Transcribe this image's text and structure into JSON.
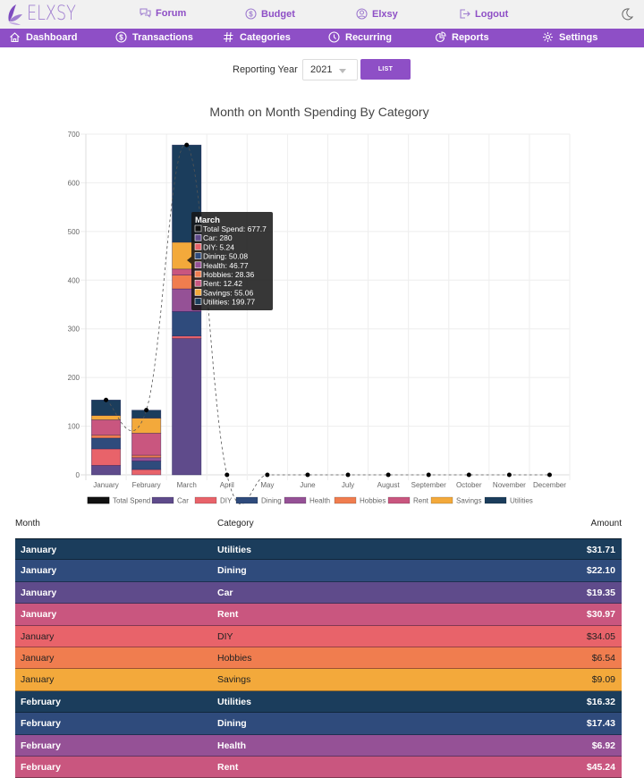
{
  "app": {
    "logo_text": "ELXSY"
  },
  "topnav": [
    {
      "label": "Forum",
      "icon": "chat-icon"
    },
    {
      "label": "Budget",
      "icon": "dollar-circle-icon"
    },
    {
      "label": "Elxsy",
      "icon": "user-circle-icon"
    },
    {
      "label": "Logout",
      "icon": "logout-icon"
    }
  ],
  "mainnav": [
    {
      "label": "Dashboard",
      "icon": "home-icon"
    },
    {
      "label": "Transactions",
      "icon": "dollar-circle-icon"
    },
    {
      "label": "Categories",
      "icon": "hash-icon"
    },
    {
      "label": "Recurring",
      "icon": "clock-icon"
    },
    {
      "label": "Reports",
      "icon": "pie-chart-icon"
    },
    {
      "label": "Settings",
      "icon": "gear-icon"
    }
  ],
  "controls": {
    "reporting_label": "Reporting Year",
    "year": "2021",
    "list_label": "LIST"
  },
  "colors": {
    "brand": "#8e4fc6",
    "Car": "#5f4b8b",
    "DIY": "#e8636a",
    "Dining": "#2f4b7c",
    "Health": "#955196",
    "Hobbies": "#f07d4f",
    "Rent": "#c9567f",
    "Savings": "#f3a93b",
    "Utilities": "#1b3d5c"
  },
  "chart_data": {
    "type": "bar",
    "stacked": true,
    "title": "Month on Month Spending By Category",
    "xlabel": "",
    "ylabel": "",
    "ylim": [
      0,
      700
    ],
    "yticks": [
      0,
      100,
      200,
      300,
      400,
      500,
      600,
      700
    ],
    "grid": true,
    "legend_position": "bottom",
    "categories": [
      "January",
      "February",
      "March",
      "April",
      "May",
      "June",
      "July",
      "August",
      "September",
      "October",
      "November",
      "December"
    ],
    "series": [
      {
        "name": "Car",
        "values": [
          19.35,
          0,
          280,
          0,
          0,
          0,
          0,
          0,
          0,
          0,
          0,
          0
        ]
      },
      {
        "name": "DIY",
        "values": [
          34.05,
          11,
          5.24,
          0,
          0,
          0,
          0,
          0,
          0,
          0,
          0,
          0
        ]
      },
      {
        "name": "Dining",
        "values": [
          22.1,
          17.43,
          50.08,
          0,
          0,
          0,
          0,
          0,
          0,
          0,
          0,
          0
        ]
      },
      {
        "name": "Health",
        "values": [
          0,
          6.92,
          46.77,
          0,
          0,
          0,
          0,
          0,
          0,
          0,
          0,
          0
        ]
      },
      {
        "name": "Hobbies",
        "values": [
          6.54,
          5,
          28.36,
          0,
          0,
          0,
          0,
          0,
          0,
          0,
          0,
          0
        ]
      },
      {
        "name": "Rent",
        "values": [
          30.97,
          45.24,
          12.42,
          0,
          0,
          0,
          0,
          0,
          0,
          0,
          0,
          0
        ]
      },
      {
        "name": "Savings",
        "values": [
          9.09,
          31,
          55.06,
          0,
          0,
          0,
          0,
          0,
          0,
          0,
          0,
          0
        ]
      },
      {
        "name": "Utilities",
        "values": [
          31.71,
          16.32,
          199.77,
          0,
          0,
          0,
          0,
          0,
          0,
          0,
          0,
          0
        ]
      }
    ],
    "line_series": {
      "name": "Total Spend",
      "values": [
        153.81,
        132.91,
        677.7,
        0,
        0,
        0,
        0,
        0,
        0,
        0,
        0,
        0
      ]
    },
    "legend": [
      "Total Spend",
      "Car",
      "DIY",
      "Dining",
      "Health",
      "Hobbies",
      "Rent",
      "Savings",
      "Utilities"
    ],
    "tooltip": {
      "title": "March",
      "lines": [
        "Total Spend: 677.7",
        "Car: 280",
        "DIY: 5.24",
        "Dining: 50.08",
        "Health: 46.77",
        "Hobbies: 28.36",
        "Rent: 12.42",
        "Savings: 55.06",
        "Utilities: 199.77"
      ]
    }
  },
  "table": {
    "headers": {
      "month": "Month",
      "category": "Category",
      "amount": "Amount"
    },
    "rows": [
      {
        "month": "January",
        "category": "Utilities",
        "amount": "$31.71"
      },
      {
        "month": "January",
        "category": "Dining",
        "amount": "$22.10"
      },
      {
        "month": "January",
        "category": "Car",
        "amount": "$19.35"
      },
      {
        "month": "January",
        "category": "Rent",
        "amount": "$30.97"
      },
      {
        "month": "January",
        "category": "DIY",
        "amount": "$34.05"
      },
      {
        "month": "January",
        "category": "Hobbies",
        "amount": "$6.54"
      },
      {
        "month": "January",
        "category": "Savings",
        "amount": "$9.09"
      },
      {
        "month": "February",
        "category": "Utilities",
        "amount": "$16.32"
      },
      {
        "month": "February",
        "category": "Dining",
        "amount": "$17.43"
      },
      {
        "month": "February",
        "category": "Health",
        "amount": "$6.92"
      },
      {
        "month": "February",
        "category": "Rent",
        "amount": "$45.24"
      }
    ]
  }
}
